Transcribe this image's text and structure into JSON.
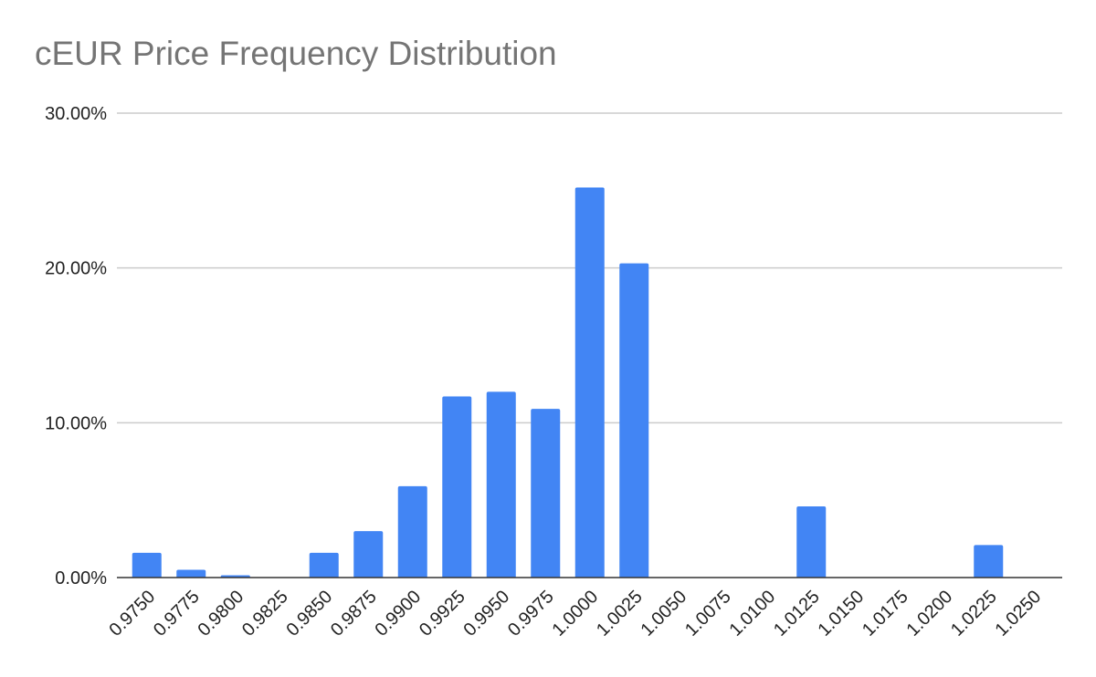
{
  "chart_data": {
    "type": "bar",
    "title": "cEUR Price Frequency Distribution",
    "xlabel": "",
    "ylabel": "",
    "categories": [
      "0.9750",
      "0.9775",
      "0.9800",
      "0.9825",
      "0.9850",
      "0.9875",
      "0.9900",
      "0.9925",
      "0.9950",
      "0.9975",
      "1.0000",
      "1.0025",
      "1.0050",
      "1.0075",
      "1.0100",
      "1.0125",
      "1.0150",
      "1.0175",
      "1.0200",
      "1.0225",
      "1.0250"
    ],
    "values": [
      1.6,
      0.5,
      0.15,
      0,
      1.6,
      3.0,
      5.9,
      11.7,
      12.0,
      10.9,
      25.2,
      20.3,
      0,
      0,
      0,
      4.6,
      0,
      0,
      0,
      2.1,
      0
    ],
    "value_unit": "percent",
    "ylim": [
      0,
      30
    ],
    "yticks": [
      0,
      10,
      20,
      30
    ],
    "ytick_labels": [
      "0.00%",
      "10.00%",
      "20.00%",
      "30.00%"
    ],
    "grid": true,
    "legend": "none",
    "bar_color": "#4285F4",
    "gridline_color": "#cccccc",
    "axis_color": "#333333"
  }
}
